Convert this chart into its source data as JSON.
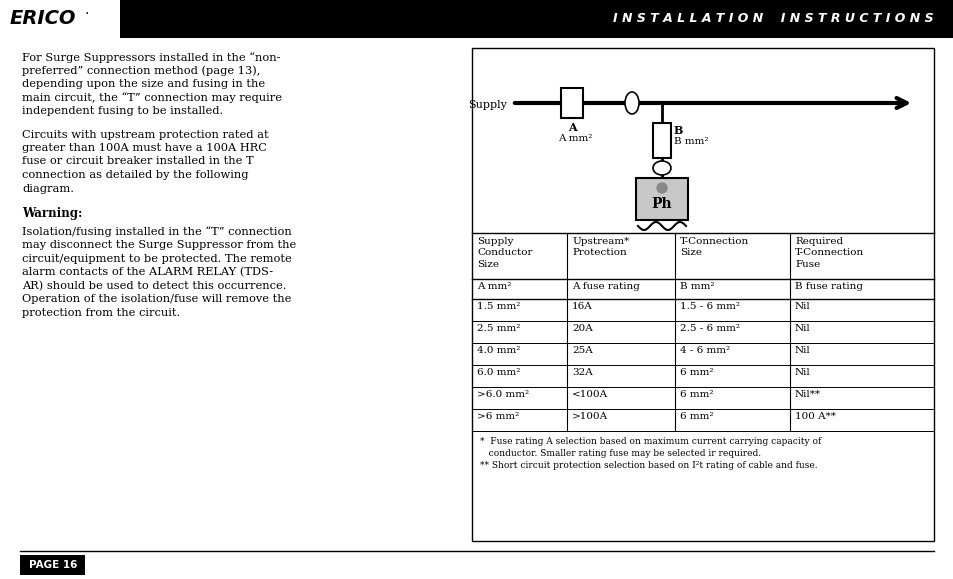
{
  "page_bg": "#ffffff",
  "header_bg": "#000000",
  "header_text_color": "#ffffff",
  "header_right": "INSTALLATION  INSTRUCTIONS",
  "table_headers_row1": [
    "Supply\nConductor\nSize",
    "Upstream*\nProtection",
    "T-Connection\nSize",
    "Required\nT-Connection\nFuse"
  ],
  "table_headers_row2": [
    "A mm²",
    "A fuse rating",
    "B mm²",
    "B fuse rating"
  ],
  "table_data": [
    [
      "1.5 mm²",
      "16A",
      "1.5 - 6 mm²",
      "Nil"
    ],
    [
      "2.5 mm²",
      "20A",
      "2.5 - 6 mm²",
      "Nil"
    ],
    [
      "4.0 mm²",
      "25A",
      "4 - 6 mm²",
      "Nil"
    ],
    [
      "6.0 mm²",
      "32A",
      "6 mm²",
      "Nil"
    ],
    [
      ">6.0 mm²",
      "<100A",
      "6 mm²",
      "Nil**"
    ],
    [
      ">6 mm²",
      ">100A",
      "6 mm²",
      "100 A**"
    ]
  ],
  "footnote1": "*  Fuse rating A selection based on maximum current carrying capacity of",
  "footnote1b": "   conductor. Smaller rating fuse may be selected ir required.",
  "footnote2": "** Short circuit protection selection based on I²t rating of cable and fuse.",
  "page_number": "PAGE 16",
  "para1_lines": [
    "For Surge Suppressors installed in the “non-",
    "preferred” connection method (page 13),",
    "depending upon the size and fusing in the",
    "main circuit, the “T” connection may require",
    "independent fusing to be installed."
  ],
  "para2_lines": [
    "Circuits with upstream protection rated at",
    "greater than 100A must have a 100A HRC",
    "fuse or circuit breaker installed in the T",
    "connection as detailed by the following",
    "diagram."
  ],
  "warning_label": "Warning:",
  "para3_lines": [
    "Isolation/fusing installed in the “T” connection",
    "may disconnect the Surge Suppressor from the",
    "circuit/equipment to be protected. The remote",
    "alarm contacts of the ALARM RELAY (TDS-",
    "AR) should be used to detect this occurrence.",
    "Operation of the isolation/fuse will remove the",
    "protection from the circuit."
  ]
}
